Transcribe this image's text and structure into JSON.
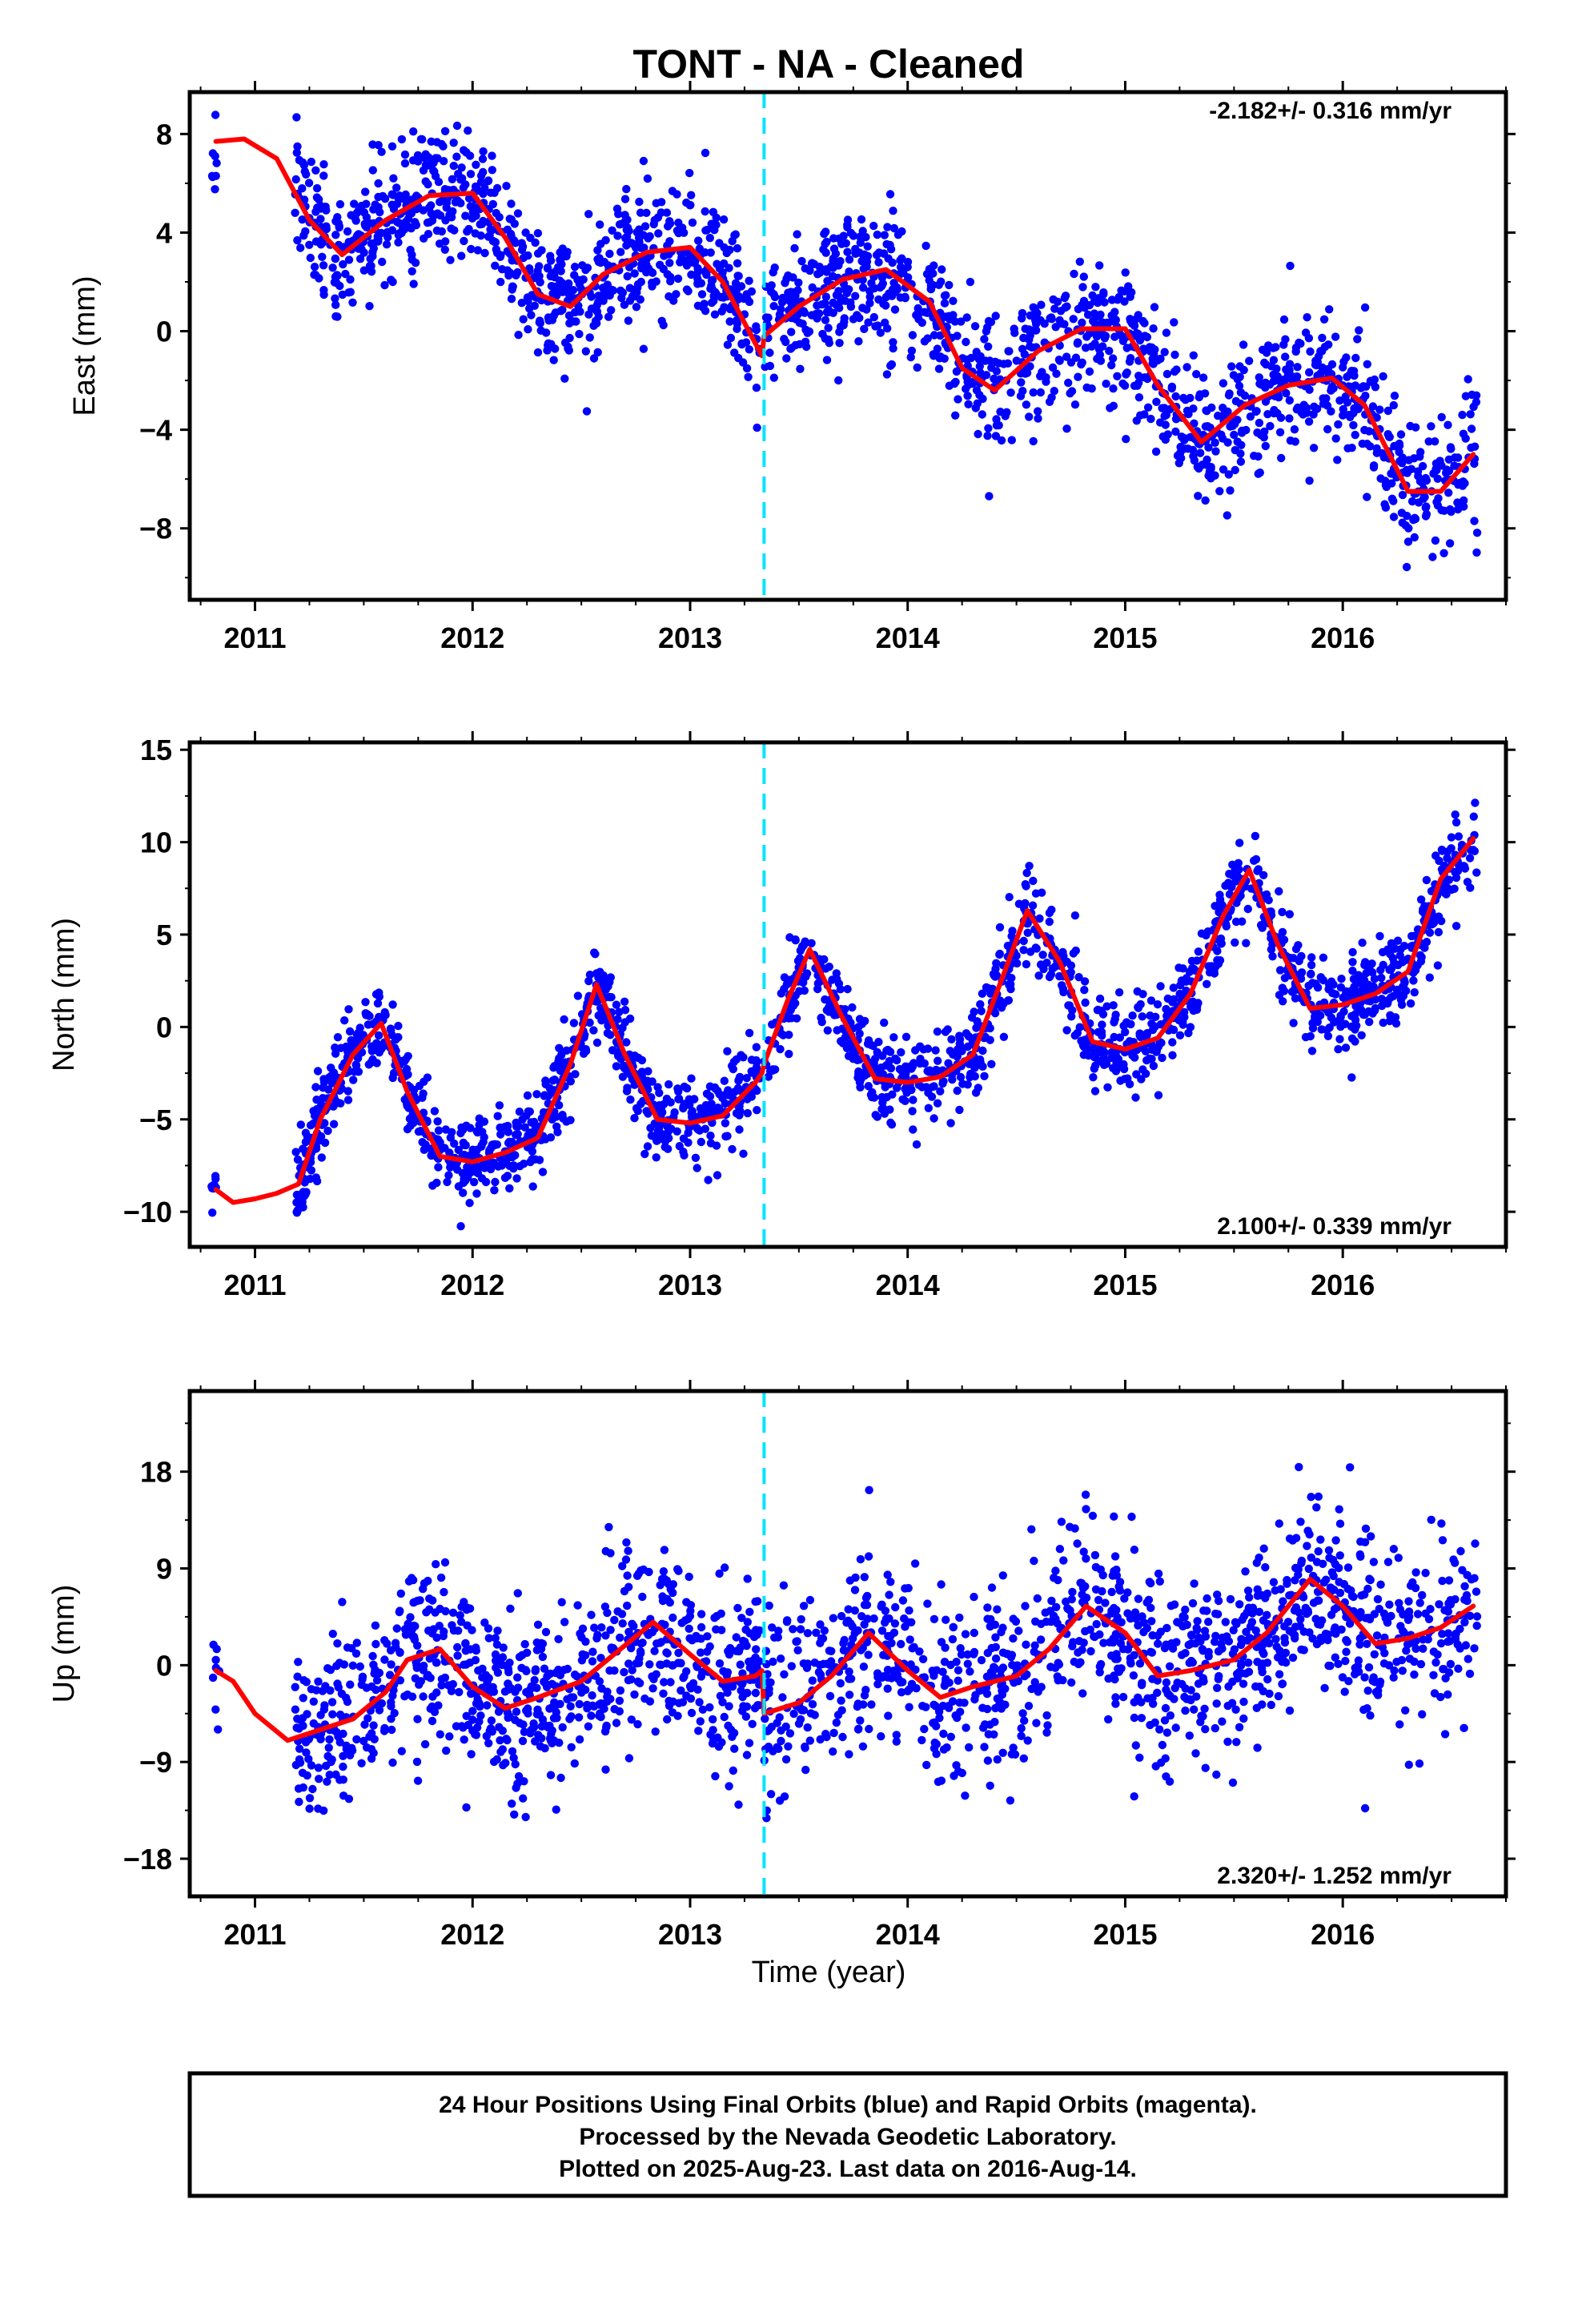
{
  "title": "TONT  - NA - Cleaned",
  "x_axis_label": "Time (year)",
  "colors": {
    "points": "#0000ff",
    "model": "#ff0000",
    "step_line": "#00e5ff",
    "frame": "#000000"
  },
  "footer": {
    "line1": "24 Hour Positions Using Final Orbits (blue) and Rapid Orbits (magenta).",
    "line2": "Processed by the Nevada Geodetic Laboratory.",
    "line3": "Plotted on 2025-Aug-23. Last data on 2016-Aug-14."
  },
  "chart_data": [
    {
      "type": "scatter",
      "name": "East",
      "ylabel": "East (mm)",
      "rate": "-2.182+/- 0.316 mm/yr",
      "rate_position": "top-right",
      "xlim": [
        2010.7,
        2016.75
      ],
      "ylim": [
        -10.9,
        9.7
      ],
      "yticks": [
        -8,
        -4,
        0,
        4,
        8
      ],
      "yticklabels": [
        "−8",
        "−4",
        "0",
        "4",
        "8"
      ],
      "xticks": [
        2011,
        2012,
        2013,
        2014,
        2015,
        2016
      ],
      "step_epoch": 2013.34,
      "model_curve": {
        "x": [
          2010.82,
          2010.95,
          2011.1,
          2011.25,
          2011.4,
          2011.6,
          2011.8,
          2012.0,
          2012.15,
          2012.3,
          2012.45,
          2012.6,
          2012.8,
          2013.0,
          2013.15,
          2013.33,
          2013.34,
          2013.5,
          2013.7,
          2013.9,
          2014.1,
          2014.25,
          2014.4,
          2014.6,
          2014.8,
          2015.0,
          2015.15,
          2015.35,
          2015.55,
          2015.75,
          2015.95,
          2016.1,
          2016.3,
          2016.45,
          2016.6
        ],
        "y": [
          7.7,
          7.8,
          7.0,
          4.5,
          3.1,
          4.5,
          5.5,
          5.6,
          3.8,
          1.5,
          1.0,
          2.3,
          3.2,
          3.4,
          2.0,
          -1.0,
          -0.2,
          1.0,
          2.1,
          2.5,
          1.2,
          -1.5,
          -2.4,
          -0.8,
          0.1,
          0.1,
          -2.2,
          -4.5,
          -3.0,
          -2.2,
          -1.9,
          -3.0,
          -6.5,
          -6.5,
          -5.0
        ]
      },
      "points": {
        "seed": 11,
        "segments": [
          {
            "from": 2010.8,
            "to": 2010.84,
            "n": 8,
            "sigma": 1.6
          },
          {
            "from": 2011.18,
            "to": 2013.32,
            "n": 820,
            "sigma": 1.3
          },
          {
            "from": 2013.34,
            "to": 2016.62,
            "n": 1150,
            "sigma": 1.35
          }
        ]
      }
    },
    {
      "type": "scatter",
      "name": "North",
      "ylabel": "North (mm)",
      "rate": "2.100+/- 0.339 mm/yr",
      "rate_position": "bottom-right",
      "xlim": [
        2010.7,
        2016.75
      ],
      "ylim": [
        -11.9,
        15.4
      ],
      "yticks": [
        -10,
        -5,
        0,
        5,
        10,
        15
      ],
      "yticklabels": [
        "−10",
        "−5",
        "0",
        "5",
        "10",
        "15"
      ],
      "xticks": [
        2011,
        2012,
        2013,
        2014,
        2015,
        2016
      ],
      "step_epoch": 2013.34,
      "model_curve": {
        "x": [
          2010.82,
          2010.9,
          2011.0,
          2011.1,
          2011.2,
          2011.3,
          2011.45,
          2011.58,
          2011.7,
          2011.85,
          2012.0,
          2012.15,
          2012.3,
          2012.45,
          2012.57,
          2012.7,
          2012.85,
          2013.0,
          2013.15,
          2013.3,
          2013.33,
          2013.34,
          2013.45,
          2013.55,
          2013.7,
          2013.85,
          2014.0,
          2014.15,
          2014.3,
          2014.43,
          2014.55,
          2014.7,
          2014.85,
          2015.0,
          2015.15,
          2015.3,
          2015.45,
          2015.57,
          2015.7,
          2015.85,
          2016.0,
          2016.15,
          2016.3,
          2016.45,
          2016.6
        ],
        "y": [
          -8.8,
          -9.5,
          -9.3,
          -9.0,
          -8.5,
          -5.0,
          -1.5,
          0.2,
          -3.5,
          -7.0,
          -7.3,
          -6.8,
          -6.0,
          -2.0,
          2.3,
          -1.5,
          -5.0,
          -5.2,
          -4.8,
          -3.0,
          -2.5,
          -2.0,
          1.5,
          4.2,
          0.5,
          -2.8,
          -3.0,
          -2.7,
          -1.5,
          2.5,
          6.3,
          3.5,
          -0.8,
          -1.2,
          -0.6,
          1.8,
          6.0,
          8.5,
          4.5,
          1.0,
          1.2,
          1.8,
          3.0,
          8.0,
          10.2
        ]
      },
      "points": {
        "seed": 23,
        "segments": [
          {
            "from": 2010.8,
            "to": 2010.84,
            "n": 8,
            "sigma": 0.8
          },
          {
            "from": 2011.18,
            "to": 2013.32,
            "n": 820,
            "sigma": 1.1
          },
          {
            "from": 2013.34,
            "to": 2016.62,
            "n": 1150,
            "sigma": 1.2
          }
        ]
      }
    },
    {
      "type": "scatter",
      "name": "Up",
      "ylabel": "Up (mm)",
      "rate": "2.320+/- 1.252 mm/yr",
      "rate_position": "bottom-right",
      "xlim": [
        2010.7,
        2016.75
      ],
      "ylim": [
        -21.5,
        25.5
      ],
      "yticks": [
        -18,
        -9,
        0,
        9,
        18
      ],
      "yticklabels": [
        "−18",
        "−9",
        "0",
        "9",
        "18"
      ],
      "xticks": [
        2011,
        2012,
        2013,
        2014,
        2015,
        2016
      ],
      "step_epoch": 2013.34,
      "model_curve": {
        "x": [
          2010.82,
          2010.9,
          2011.0,
          2011.15,
          2011.3,
          2011.45,
          2011.6,
          2011.7,
          2011.85,
          2012.0,
          2012.15,
          2012.3,
          2012.5,
          2012.65,
          2012.83,
          2013.0,
          2013.15,
          2013.3,
          2013.33,
          2013.34,
          2013.5,
          2013.65,
          2013.82,
          2014.0,
          2014.15,
          2014.3,
          2014.5,
          2014.65,
          2014.82,
          2015.0,
          2015.15,
          2015.3,
          2015.5,
          2015.65,
          2015.85,
          2016.0,
          2016.15,
          2016.3,
          2016.45,
          2016.6
        ],
        "y": [
          -0.5,
          -1.5,
          -4.5,
          -7.0,
          -6.0,
          -5.0,
          -2.5,
          0.5,
          1.5,
          -2.0,
          -4.0,
          -3.0,
          -1.5,
          1.0,
          4.0,
          1.0,
          -1.5,
          -1.0,
          -0.5,
          -4.5,
          -3.5,
          -1.0,
          3.0,
          -0.5,
          -3.0,
          -2.0,
          -1.0,
          1.5,
          5.5,
          3.0,
          -1.0,
          -0.5,
          0.5,
          3.0,
          8.0,
          5.5,
          2.0,
          2.5,
          3.5,
          5.5
        ]
      },
      "points": {
        "seed": 37,
        "segments": [
          {
            "from": 2010.8,
            "to": 2010.84,
            "n": 8,
            "sigma": 3.5
          },
          {
            "from": 2011.18,
            "to": 2013.32,
            "n": 820,
            "sigma": 4.0
          },
          {
            "from": 2013.34,
            "to": 2016.62,
            "n": 1150,
            "sigma": 4.4
          }
        ]
      }
    }
  ]
}
